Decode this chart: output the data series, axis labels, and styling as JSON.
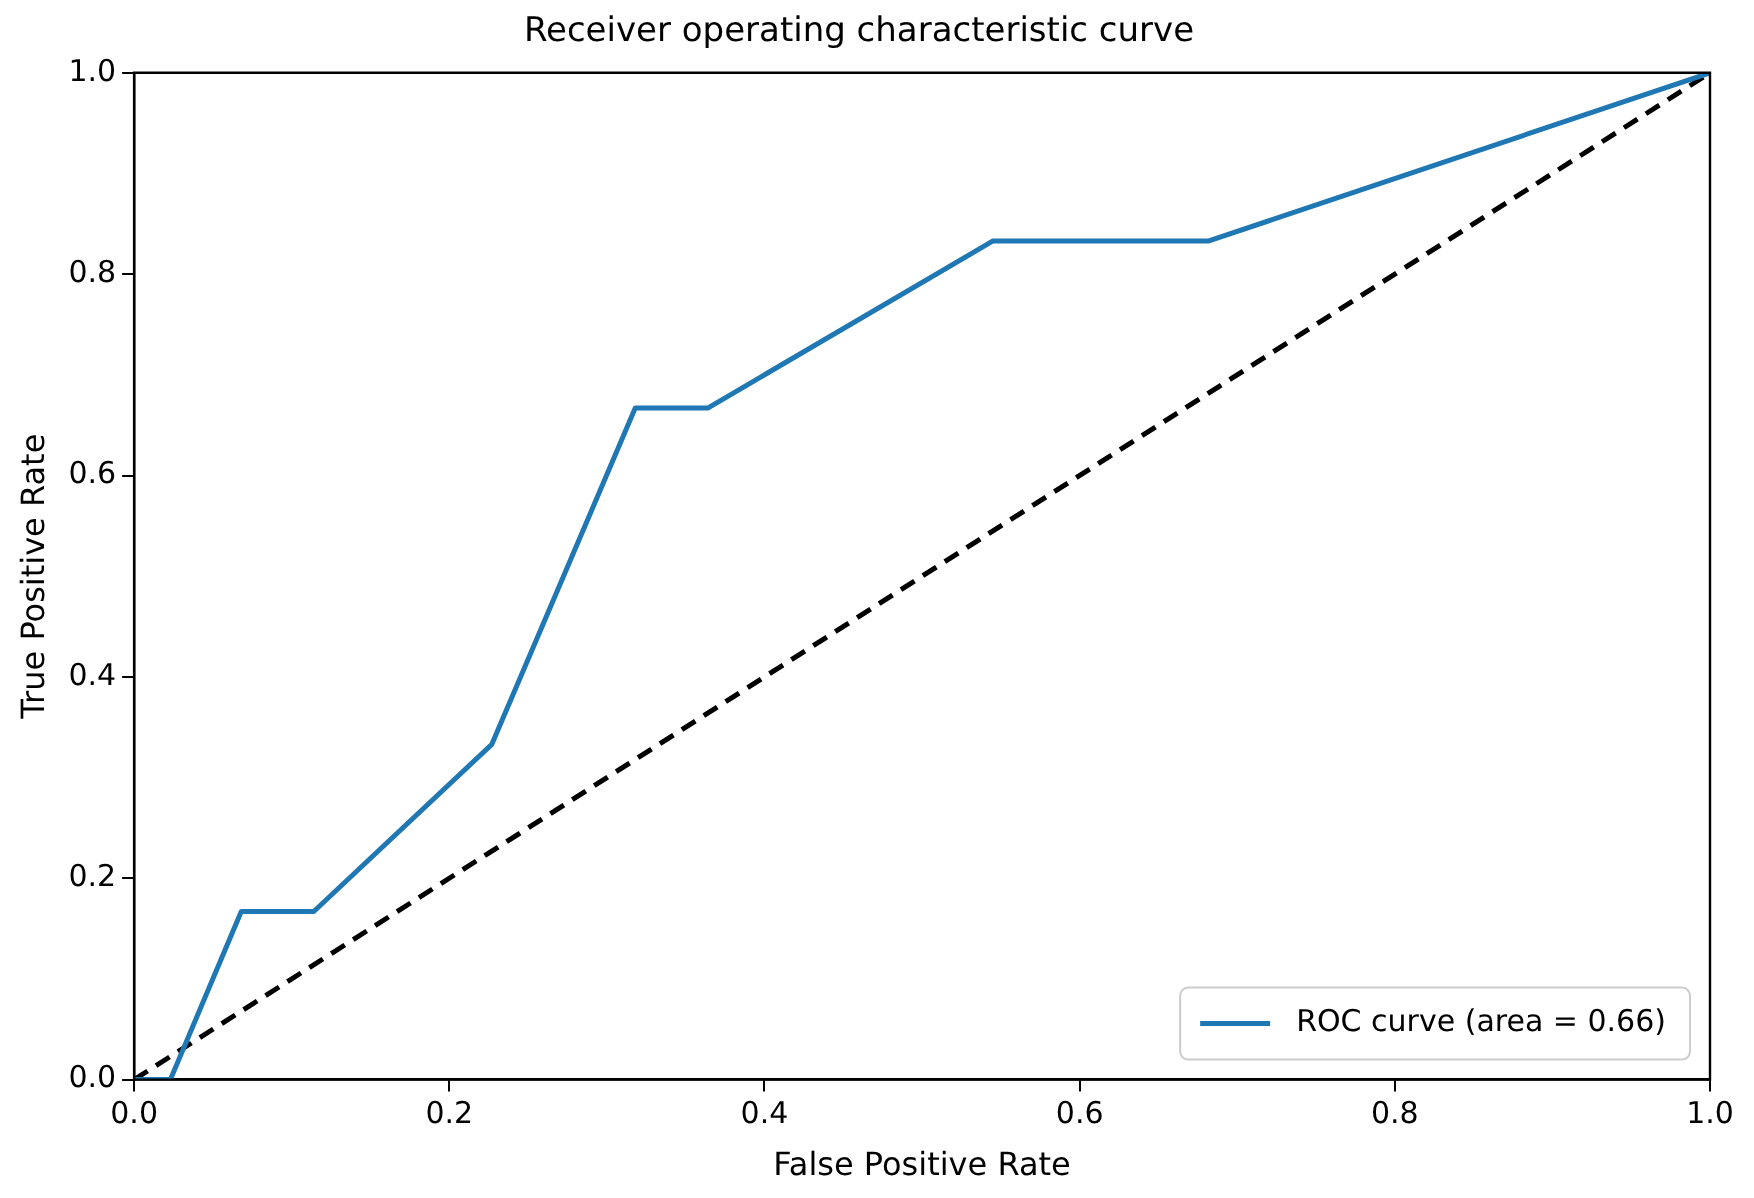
{
  "chart_data": {
    "type": "line",
    "title": "Receiver operating characteristic curve",
    "xlabel": "False Positive Rate",
    "ylabel": "True Positive Rate",
    "series": [
      {
        "name": "ROC curve (area = 0.66)",
        "color": "#1f77b4",
        "line_style": "solid",
        "x": [
          0,
          0.023,
          0.068,
          0.114,
          0.227,
          0.318,
          0.364,
          0.545,
          0.682,
          1
        ],
        "values": [
          0,
          0,
          0.167,
          0.167,
          0.333,
          0.667,
          0.667,
          0.833,
          0.833,
          1
        ]
      },
      {
        "color": "#000000",
        "line_style": "dashed",
        "x": [
          0,
          1
        ],
        "values": [
          0,
          1
        ]
      }
    ],
    "xlim": [
      0,
      1
    ],
    "ylim": [
      0,
      1
    ],
    "xticks": [
      {
        "value": 0,
        "label": "0.0"
      },
      {
        "value": 0.2,
        "label": "0.2"
      },
      {
        "value": 0.4,
        "label": "0.4"
      },
      {
        "value": 0.6,
        "label": "0.6"
      },
      {
        "value": 0.8,
        "label": "0.8"
      },
      {
        "value": 1,
        "label": "1.0"
      }
    ],
    "yticks": [
      {
        "value": 0,
        "label": "0.0"
      },
      {
        "value": 0.2,
        "label": "0.2"
      },
      {
        "value": 0.4,
        "label": "0.4"
      },
      {
        "value": 0.6,
        "label": "0.6"
      },
      {
        "value": 0.8,
        "label": "0.8"
      },
      {
        "value": 1,
        "label": "1.0"
      }
    ],
    "grid": false,
    "legend": "bottom right",
    "marker": "none"
  }
}
